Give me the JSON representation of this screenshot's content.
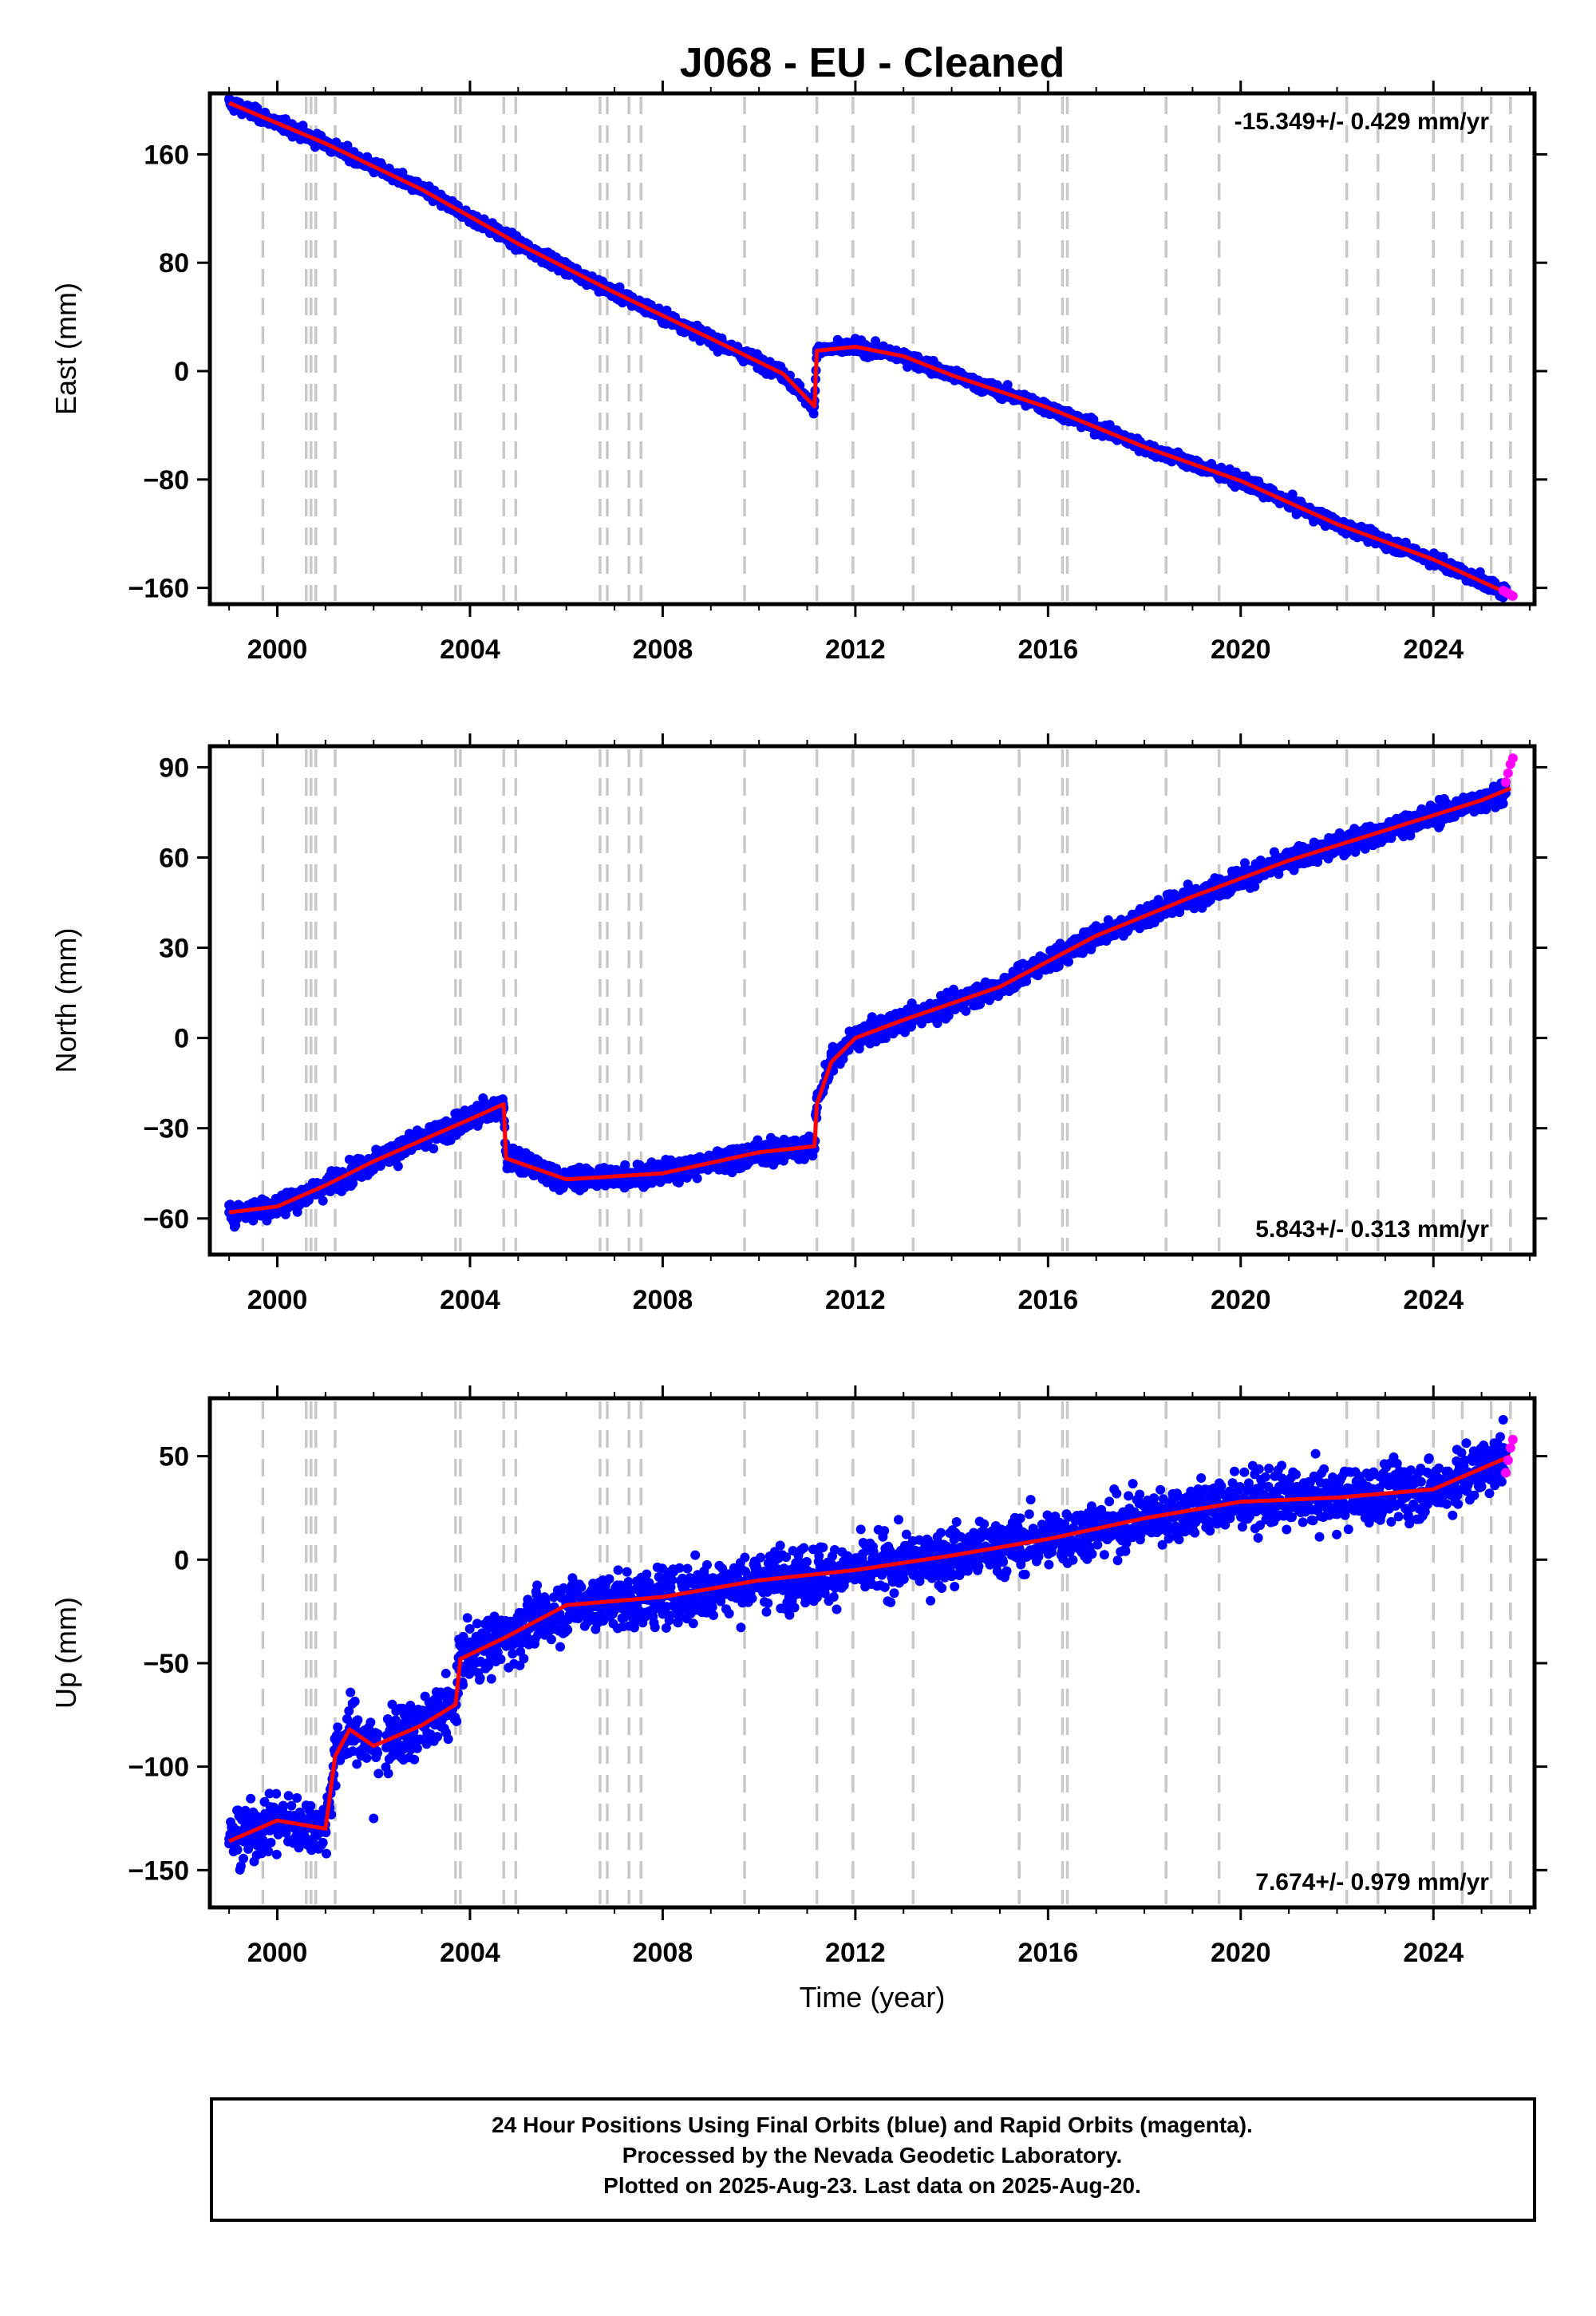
{
  "chart_data": [
    {
      "type": "scatter",
      "title": "J068  - EU - Cleaned",
      "ylabel": "East (mm)",
      "xlabel": "",
      "xlim": [
        1998.6,
        2026.1
      ],
      "ylim": [
        -172,
        205
      ],
      "x_ticks": [
        2000,
        2004,
        2008,
        2012,
        2016,
        2020,
        2024
      ],
      "y_ticks": [
        160,
        80,
        0,
        -80,
        -160
      ],
      "rate_text": "-15.349+/- 0.429 mm/yr",
      "rate_position": "top-right",
      "grid": false,
      "series": [
        {
          "name": "Final Orbits",
          "color": "#0000ff",
          "style": "points",
          "x": [
            1999.0,
            2001.0,
            2003.0,
            2005.0,
            2007.0,
            2009.0,
            2010.5,
            2011.1,
            2011.2,
            2012.0,
            2013.0,
            2014.0,
            2016.0,
            2018.0,
            2020.0,
            2022.0,
            2024.0,
            2025.5
          ],
          "y": [
            200,
            170,
            136,
            95,
            60,
            25,
            0,
            -28,
            14,
            20,
            12,
            -2,
            -25,
            -55,
            -80,
            -115,
            -140,
            -160
          ]
        },
        {
          "name": "Rapid Orbits",
          "color": "#ff00ff",
          "style": "points",
          "x": [
            2025.45,
            2025.5,
            2025.55,
            2025.6,
            2025.65
          ],
          "y": [
            -162,
            -163,
            -164,
            -165,
            -166
          ]
        },
        {
          "name": "Model",
          "color": "#ff0000",
          "style": "line",
          "x": [
            1999.0,
            2001.0,
            2003.0,
            2005.0,
            2007.0,
            2009.0,
            2010.5,
            2011.15,
            2011.2,
            2012.0,
            2013.0,
            2014.0,
            2016.0,
            2018.0,
            2020.0,
            2022.0,
            2024.0,
            2025.6
          ],
          "y": [
            198,
            168,
            134,
            94,
            58,
            24,
            -2,
            -26,
            15,
            18,
            11,
            -3,
            -27,
            -56,
            -81,
            -113,
            -139,
            -165
          ]
        }
      ],
      "events": [
        1999.7,
        2000.6,
        2000.7,
        2000.8,
        2001.2,
        2003.7,
        2003.8,
        2004.7,
        2004.95,
        2006.7,
        2006.85,
        2007.3,
        2007.55,
        2009.7,
        2011.2,
        2011.95,
        2013.2,
        2015.4,
        2016.3,
        2016.4,
        2018.45,
        2019.55,
        2022.2,
        2022.85,
        2024.0,
        2024.6,
        2025.2,
        2025.6
      ]
    },
    {
      "type": "scatter",
      "title": "",
      "ylabel": "North (mm)",
      "xlabel": "",
      "xlim": [
        1998.6,
        2026.1
      ],
      "ylim": [
        -72,
        97
      ],
      "x_ticks": [
        2000,
        2004,
        2008,
        2012,
        2016,
        2020,
        2024
      ],
      "y_ticks": [
        90,
        60,
        30,
        0,
        -30,
        -60
      ],
      "rate_text": "5.843+/- 0.313 mm/yr",
      "rate_position": "bottom-right",
      "grid": false,
      "series": [
        {
          "name": "Final Orbits",
          "color": "#0000ff",
          "style": "points",
          "x": [
            1999.0,
            2000.0,
            2001.0,
            2002.0,
            2003.0,
            2004.0,
            2004.7,
            2004.8,
            2006.0,
            2008.0,
            2010.0,
            2011.1,
            2011.2,
            2011.5,
            2012.0,
            2013.0,
            2015.0,
            2017.0,
            2019.0,
            2021.0,
            2023.0,
            2025.0,
            2025.5
          ],
          "y": [
            -58,
            -55,
            -49,
            -42,
            -35,
            -28,
            -23,
            -42,
            -47,
            -45,
            -38,
            -35,
            -20,
            -5,
            0,
            6,
            18,
            35,
            48,
            60,
            70,
            80,
            85
          ]
        },
        {
          "name": "Rapid Orbits",
          "color": "#ff00ff",
          "style": "points",
          "x": [
            2025.5,
            2025.55,
            2025.6,
            2025.65
          ],
          "y": [
            85,
            88,
            91,
            93
          ]
        },
        {
          "name": "Model",
          "color": "#ff0000",
          "style": "line",
          "x": [
            1999.0,
            2000.0,
            2001.0,
            2002.0,
            2003.0,
            2004.0,
            2004.7,
            2004.75,
            2006.0,
            2008.0,
            2010.0,
            2011.15,
            2011.2,
            2011.5,
            2012.0,
            2013.0,
            2015.0,
            2017.0,
            2019.0,
            2021.0,
            2023.0,
            2025.0,
            2025.6
          ],
          "y": [
            -58,
            -56,
            -49,
            -41,
            -34,
            -27,
            -22,
            -40,
            -47,
            -45,
            -38,
            -36,
            -22,
            -8,
            0,
            6,
            17,
            34,
            47,
            59,
            69,
            79,
            83
          ]
        }
      ],
      "events": [
        1999.7,
        2000.6,
        2000.7,
        2000.8,
        2001.2,
        2003.7,
        2003.8,
        2004.7,
        2004.95,
        2006.7,
        2006.85,
        2007.3,
        2007.55,
        2009.7,
        2011.2,
        2011.95,
        2013.2,
        2015.4,
        2016.3,
        2016.4,
        2018.45,
        2019.55,
        2022.2,
        2022.85,
        2024.0,
        2024.6,
        2025.2,
        2025.6
      ]
    },
    {
      "type": "scatter",
      "title": "",
      "ylabel": "Up (mm)",
      "xlabel": "Time (year)",
      "xlim": [
        1998.6,
        2026.1
      ],
      "ylim": [
        -168,
        78
      ],
      "x_ticks": [
        2000,
        2004,
        2008,
        2012,
        2016,
        2020,
        2024
      ],
      "y_ticks": [
        50,
        0,
        -50,
        -100,
        -150
      ],
      "rate_text": "7.674+/- 0.979 mm/yr",
      "rate_position": "bottom-right",
      "grid": false,
      "series": [
        {
          "name": "Final Orbits",
          "color": "#0000ff",
          "style": "points",
          "x": [
            1999.0,
            2000.0,
            2001.0,
            2002.0,
            2002.3,
            2003.0,
            2003.5,
            2004.0,
            2005.0,
            2006.0,
            2008.0,
            2010.0,
            2012.0,
            2014.0,
            2016.0,
            2018.0,
            2020.0,
            2022.0,
            2024.0,
            2025.5
          ],
          "y": [
            -135,
            -125,
            -128,
            -125,
            -85,
            -80,
            -55,
            -45,
            -32,
            -22,
            -18,
            -10,
            -5,
            2,
            10,
            20,
            28,
            30,
            35,
            42
          ]
        },
        {
          "name": "Rapid Orbits",
          "color": "#ff00ff",
          "style": "points",
          "x": [
            2025.5,
            2025.55,
            2025.6,
            2025.65
          ],
          "y": [
            42,
            48,
            54,
            58
          ]
        },
        {
          "name": "Model",
          "color": "#ff0000",
          "style": "line",
          "x": [
            1999.0,
            2000.0,
            2001.0,
            2001.2,
            2001.5,
            2002.0,
            2003.0,
            2003.7,
            2003.8,
            2004.7,
            2006.0,
            2008.0,
            2010.0,
            2012.0,
            2014.0,
            2016.0,
            2018.0,
            2020.0,
            2022.0,
            2024.0,
            2025.6
          ],
          "y": [
            -136,
            -126,
            -130,
            -95,
            -82,
            -90,
            -80,
            -70,
            -48,
            -38,
            -22,
            -18,
            -10,
            -5,
            2,
            10,
            20,
            28,
            30,
            34,
            50
          ]
        }
      ],
      "events": [
        1999.7,
        2000.6,
        2000.7,
        2000.8,
        2001.2,
        2003.7,
        2003.8,
        2004.7,
        2004.95,
        2006.7,
        2006.85,
        2007.3,
        2007.55,
        2009.7,
        2011.2,
        2011.95,
        2013.2,
        2015.4,
        2016.3,
        2016.4,
        2018.45,
        2019.55,
        2022.2,
        2022.85,
        2024.0,
        2024.6,
        2025.2,
        2025.6
      ]
    }
  ],
  "footer": {
    "line1": "24 Hour Positions Using Final Orbits (blue) and Rapid Orbits (magenta).",
    "line2": "Processed by the Nevada Geodetic Laboratory.",
    "line3": "Plotted on 2025-Aug-23. Last data on 2025-Aug-20."
  },
  "colors": {
    "final": "#0000ff",
    "rapid": "#ff00ff",
    "model": "#ff0000",
    "events": "#c8c8c8"
  }
}
